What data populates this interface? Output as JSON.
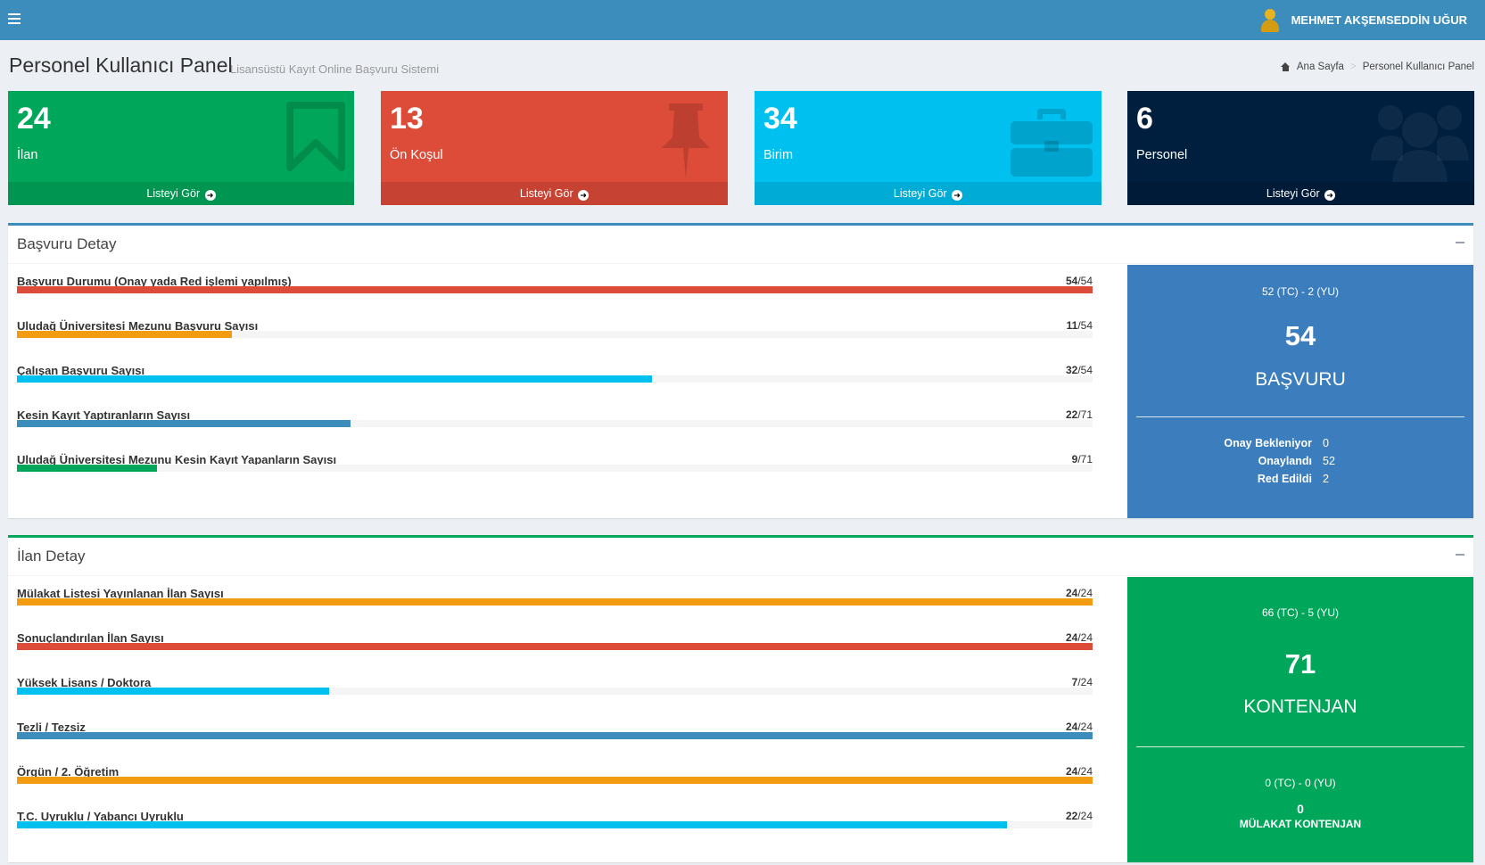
{
  "header": {
    "user_name": "MEHMET AKŞEMSEDDİN UĞUR"
  },
  "page": {
    "title": "Personel Kullanıcı Panel",
    "subtitle": "Lisansüstü Kayıt Online Başvuru Sistemi",
    "breadcrumb": [
      "Ana Sayfa",
      "Personel Kullanıcı Panel"
    ]
  },
  "stat_boxes": [
    {
      "value": "24",
      "label": "İlan",
      "link": "Listeyi Gör",
      "color": "#00a65a",
      "icon": "bookmark-icon"
    },
    {
      "value": "13",
      "label": "Ön Koşul",
      "link": "Listeyi Gör",
      "color": "#dd4b39",
      "icon": "pushpin-icon"
    },
    {
      "value": "34",
      "label": "Birim",
      "link": "Listeyi Gör",
      "color": "#00c0ef",
      "icon": "briefcase-icon"
    },
    {
      "value": "6",
      "label": "Personel",
      "link": "Listeyi Gör",
      "color": "#001f3f",
      "icon": "users-icon"
    }
  ],
  "basvuru": {
    "title": "Başvuru Detay",
    "rows": [
      {
        "label": "Başvuru Durumu (Onay yada Red işlemi yapılmış)",
        "value": "54",
        "total": "/54",
        "color": "red",
        "ratio": 1.0
      },
      {
        "label": "Uludağ Üniversitesi Mezunu Başvuru Sayısı",
        "value": "11",
        "total": "/54",
        "color": "yellow",
        "ratio": 0.2
      },
      {
        "label": "Çalışan Başvuru Sayısı",
        "value": "32",
        "total": "/54",
        "color": "aqua",
        "ratio": 0.59
      },
      {
        "label": "Kesin Kayıt Yaptıranların Sayısı",
        "value": "22",
        "total": "/71",
        "color": "blue",
        "ratio": 0.31
      },
      {
        "label": "Uludağ Üniversitesi Mezunu Kesin Kayıt Yapanların Sayısı",
        "value": "9",
        "total": "/71",
        "color": "green",
        "ratio": 0.13
      }
    ],
    "side": {
      "sub": "52 (TC) - 2 (YU)",
      "big": "54",
      "word": "BAŞVURU",
      "stats": [
        {
          "k": "Onay Bekleniyor",
          "v": "0"
        },
        {
          "k": "Onaylandı",
          "v": "52"
        },
        {
          "k": "Red Edildi",
          "v": "2"
        }
      ]
    }
  },
  "ilan": {
    "title": "İlan Detay",
    "rows": [
      {
        "label": "Mülakat Listesi Yayınlanan İlan Sayısı",
        "value": "24",
        "total": "/24",
        "color": "yellow",
        "ratio": 1.0
      },
      {
        "label": "Sonuçlandırılan İlan Sayısı",
        "value": "24",
        "total": "/24",
        "color": "red",
        "ratio": 1.0
      },
      {
        "label": "Yüksek Lisans / Doktora",
        "value": "7",
        "total": "/24",
        "color": "aqua",
        "ratio": 0.29
      },
      {
        "label": "Tezli / Tezsiz",
        "value": "24",
        "total": "/24",
        "color": "blue",
        "ratio": 1.0
      },
      {
        "label": "Örgün / 2. Öğretim",
        "value": "24",
        "total": "/24",
        "color": "yellow",
        "ratio": 1.0
      },
      {
        "label": "T.C. Uyruklu / Yabancı Uyruklu",
        "value": "22",
        "total": "/24",
        "color": "aqua",
        "ratio": 0.92
      }
    ],
    "side": {
      "sub": "66 (TC) - 5 (YU)",
      "big": "71",
      "word": "KONTENJAN",
      "sub2": "0 (TC) - 0 (YU)",
      "big2": "0",
      "word2": "MÜLAKAT KONTENJAN"
    }
  }
}
